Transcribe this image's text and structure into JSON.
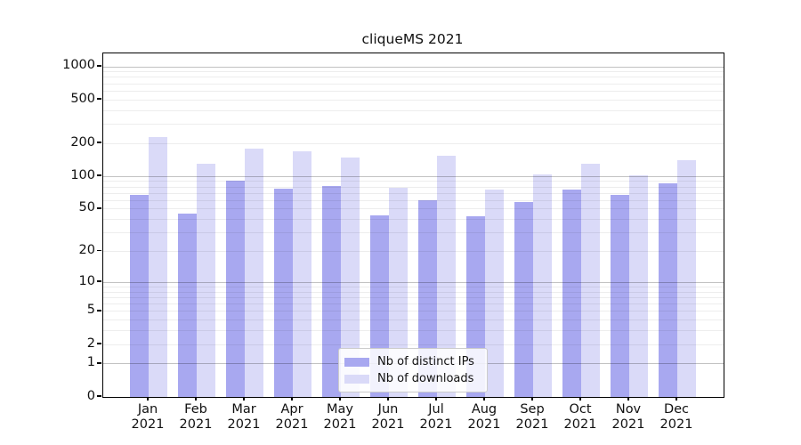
{
  "chart_data": {
    "type": "bar",
    "title": "cliqueMS 2021",
    "categories": [
      "Jan",
      "Feb",
      "Mar",
      "Apr",
      "May",
      "Jun",
      "Jul",
      "Aug",
      "Sep",
      "Oct",
      "Nov",
      "Dec"
    ],
    "category_year": "2021",
    "series": [
      {
        "name": "Nb of distinct IPs",
        "color": "#a8a8f0",
        "values": [
          68,
          45,
          91,
          77,
          82,
          44,
          60,
          43,
          58,
          76,
          68,
          86
        ]
      },
      {
        "name": "Nb of downloads",
        "color": "#dadaf8",
        "values": [
          230,
          130,
          180,
          169,
          149,
          79,
          155,
          76,
          105,
          130,
          102,
          140
        ]
      }
    ],
    "yscale": "log10(v+1)",
    "y_ticks": [
      1000,
      500,
      200,
      100,
      50,
      20,
      10,
      5,
      2,
      1,
      0
    ],
    "ylim": [
      0,
      1320
    ],
    "grid": "minor+major horizontal",
    "legend_position": "lower center",
    "axis_color": "#000000",
    "major_grid_values": [
      1,
      10,
      100,
      1000
    ],
    "minor_grid_values": [
      2,
      3,
      4,
      5,
      6,
      7,
      8,
      9,
      20,
      30,
      40,
      50,
      60,
      70,
      80,
      90,
      200,
      300,
      400,
      500,
      600,
      700,
      800,
      900
    ]
  }
}
